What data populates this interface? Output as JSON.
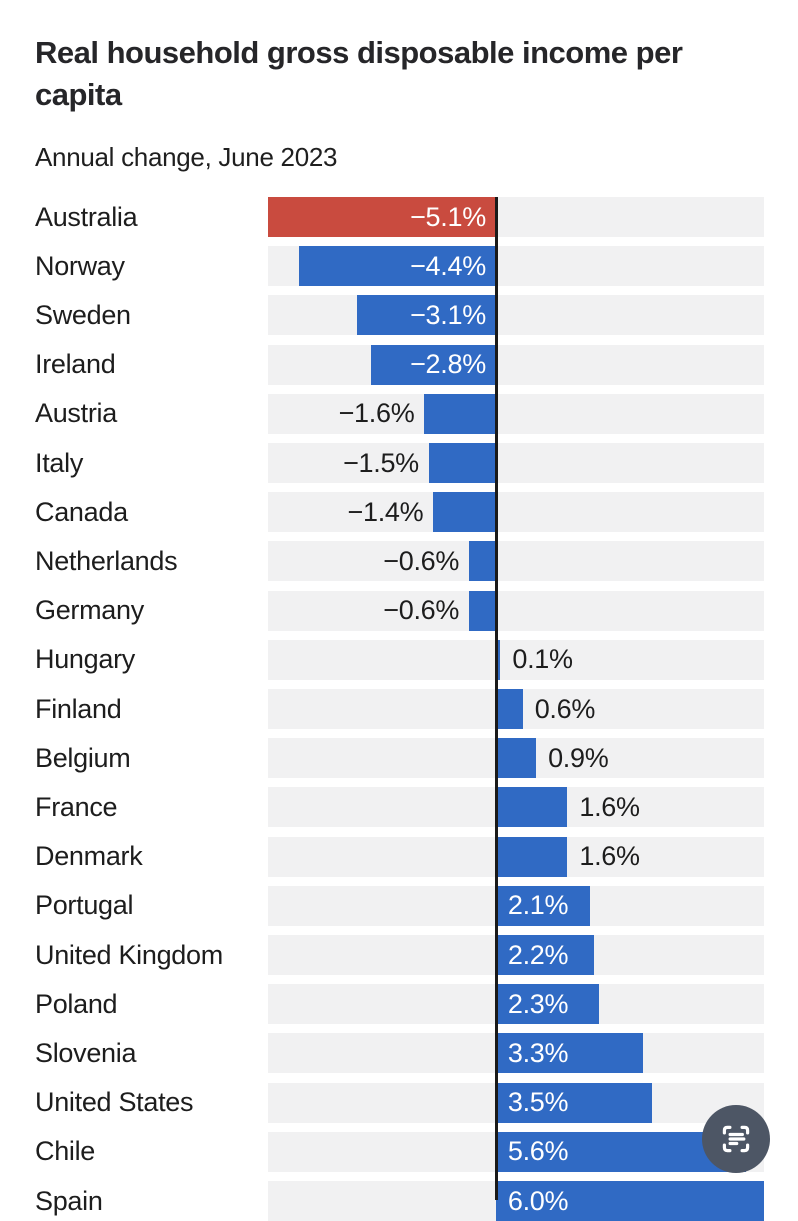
{
  "header": {
    "title": "Real household gross disposable income per capita",
    "subtitle": "Annual change, June 2023"
  },
  "chart_data": {
    "type": "bar",
    "orientation": "horizontal",
    "title": "Real household gross disposable income per capita",
    "subtitle": "Annual change, June 2023",
    "unit": "%",
    "xlim": [
      -5.1,
      6.0
    ],
    "grid": false,
    "legend": false,
    "zero_axis": true,
    "categories": [
      "Australia",
      "Norway",
      "Sweden",
      "Ireland",
      "Austria",
      "Italy",
      "Canada",
      "Netherlands",
      "Germany",
      "Hungary",
      "Finland",
      "Belgium",
      "France",
      "Denmark",
      "Portugal",
      "United Kingdom",
      "Poland",
      "Slovenia",
      "United States",
      "Chile",
      "Spain"
    ],
    "values": [
      -5.1,
      -4.4,
      -3.1,
      -2.8,
      -1.6,
      -1.5,
      -1.4,
      -0.6,
      -0.6,
      0.1,
      0.6,
      0.9,
      1.6,
      1.6,
      2.1,
      2.2,
      2.3,
      3.3,
      3.5,
      5.6,
      6.0
    ],
    "labels": [
      "−5.1%",
      "−4.4%",
      "−3.1%",
      "−2.8%",
      "−1.6%",
      "−1.5%",
      "−1.4%",
      "−0.6%",
      "−0.6%",
      "0.1%",
      "0.6%",
      "0.9%",
      "1.6%",
      "1.6%",
      "2.1%",
      "2.2%",
      "2.3%",
      "3.3%",
      "3.5%",
      "5.6%",
      "6.0%"
    ],
    "highlight_category": "Australia",
    "colors": {
      "bar": "#306ac4",
      "highlight": "#c94b3f",
      "row_stripe": "#f1f1f2",
      "axis_line": "#1a1a1a",
      "label_inside": "#ffffff",
      "label_outside": "#1d1d1d"
    }
  },
  "fab": {
    "icon": "scan-text-icon",
    "color": "#4d5665",
    "icon_color": "#ffffff"
  }
}
